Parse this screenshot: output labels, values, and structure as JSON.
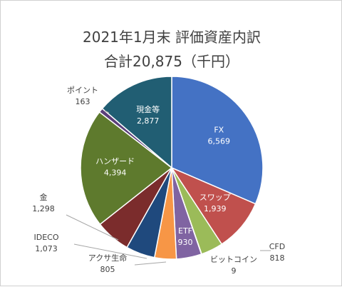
{
  "chart_data": {
    "type": "pie",
    "title": "2021年1月末  評価資産内訳",
    "subtitle": "合計20,875（千円）",
    "start_angle_deg": 0,
    "direction": "clockwise",
    "slices": [
      {
        "label": "FX",
        "value": 6569,
        "value_text": "6,569",
        "color": "#4472c4",
        "label_pos": "inside"
      },
      {
        "label": "スワップ",
        "value": 1939,
        "value_text": "1,939",
        "color": "#c0504d",
        "label_pos": "inside"
      },
      {
        "label": "CFD",
        "value": 818,
        "value_text": "818",
        "color": "#9bbb59",
        "label_pos": "outside"
      },
      {
        "label": "ビットコイン",
        "value": 9,
        "value_text": "9",
        "color": "#4bacc6",
        "label_pos": "outside"
      },
      {
        "label": "ETF",
        "value": 930,
        "value_text": "930",
        "color": "#8064a2",
        "label_pos": "inside"
      },
      {
        "label": "アクサ生命",
        "value": 805,
        "value_text": "805",
        "color": "#f79646",
        "label_pos": "outside"
      },
      {
        "label": "IDECO",
        "value": 1073,
        "value_text": "1,073",
        "color": "#1f497d",
        "label_pos": "outside"
      },
      {
        "label": "金",
        "value": 1298,
        "value_text": "1,298",
        "color": "#7b2c2c",
        "label_pos": "outside"
      },
      {
        "label": "ハンザード",
        "value": 4394,
        "value_text": "4,394",
        "color": "#5e7a2d",
        "label_pos": "inside"
      },
      {
        "label": "ポイント",
        "value": 163,
        "value_text": "163",
        "color": "#5b3f7a",
        "label_pos": "outside"
      },
      {
        "label": "現金等",
        "value": 2877,
        "value_text": "2,877",
        "color": "#215e73",
        "label_pos": "inside"
      }
    ]
  }
}
